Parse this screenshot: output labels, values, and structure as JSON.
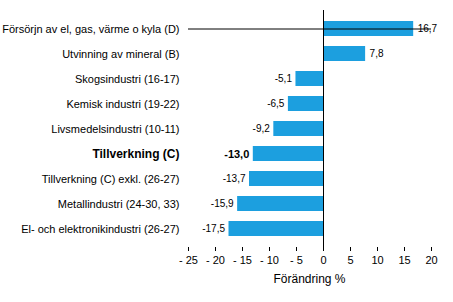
{
  "chart_data": {
    "type": "bar",
    "orientation": "horizontal",
    "categories": [
      "Försörjn av el, gas, värme o kyla (D)",
      "Utvinning av mineral (B)",
      "Skogsindustri (16-17)",
      "Kemisk industri (19-22)",
      "Livsmedelsindustri (10-11)",
      "Tillverkning (C)",
      "Tillverkning (C) exkl. (26-27)",
      "Metallindustri (24-30, 33)",
      "El- och elektronikindustri (26-27)"
    ],
    "values": [
      16.7,
      7.8,
      -5.1,
      -6.5,
      -9.2,
      -13.0,
      -13.7,
      -15.9,
      -17.5
    ],
    "value_labels": [
      "16,7",
      "7,8",
      "-5,1",
      "-6,5",
      "-9,2",
      "-13,0",
      "-13,7",
      "-15,9",
      "-17,5"
    ],
    "data_labels": true,
    "color": "#1c9fdf",
    "x_label": "Förändring %",
    "xlim": [
      -25,
      20
    ],
    "xticks": [
      {
        "value": -25,
        "label": "- 25"
      },
      {
        "value": -20,
        "label": "- 20"
      },
      {
        "value": -15,
        "label": "- 15"
      },
      {
        "value": -10,
        "label": "- 10"
      },
      {
        "value": -5,
        "label": "- 5"
      },
      0,
      5,
      10,
      15,
      20
    ],
    "grid": false
  }
}
